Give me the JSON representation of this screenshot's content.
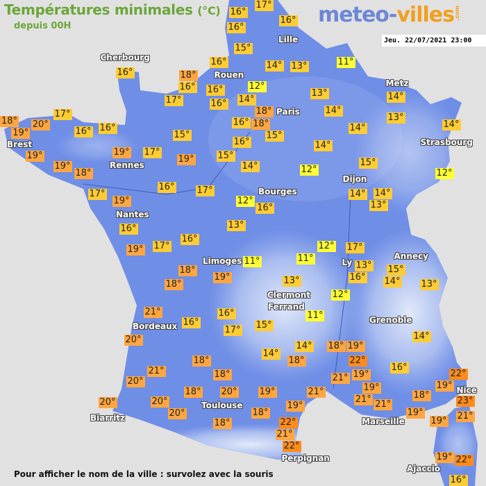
{
  "header": {
    "title": "Températures minimales",
    "unit": "(°C)",
    "subtitle": "depuis 00H",
    "datetime": "Jeu. 22/07/2021 23:00"
  },
  "logo": {
    "part1": "meteo-",
    "part2": "villes",
    "suffix": ".com"
  },
  "footer": "Pour afficher le nom de la ville : survolez avec la souris",
  "colors": {
    "land": "#6f8ee6",
    "sea": "#e2e1e1",
    "title": "#6aa63a",
    "temp_11_12": "#ffff33",
    "temp_13_17": "#ffcc33",
    "temp_18_21": "#ffa640",
    "temp_22_23": "#ff8c1a"
  },
  "cities": [
    "Cherbourg",
    "Lille",
    "Rouen",
    "Paris",
    "Metz",
    "Strasbourg",
    "Brest",
    "Rennes",
    "Nantes",
    "Bourges",
    "Dijon",
    "Limoges",
    "Ly",
    "Annecy",
    "Clermont",
    "Ferrand",
    "Grenoble",
    "Bordeaux",
    "Toulouse",
    "Biarritz",
    "Marseille",
    "Nice",
    "Perpignan",
    "Ajaccio"
  ],
  "temperatures": [
    "16°",
    "17°",
    "16°",
    "16°",
    "15°",
    "16°",
    "18°",
    "16°",
    "16°",
    "16°",
    "17°",
    "12°",
    "14°",
    "18°",
    "18°",
    "15°",
    "16°",
    "16°",
    "14°",
    "13°",
    "11°",
    "13°",
    "14°",
    "14°",
    "14°",
    "13°",
    "14°",
    "12°",
    "15°",
    "14°",
    "12°",
    "14°",
    "14°",
    "14°",
    "13°",
    "12°",
    "16°",
    "13°",
    "15°",
    "15°",
    "16°",
    "17°",
    "19°",
    "17°",
    "19°",
    "18°",
    "19°",
    "19°",
    "16°",
    "16°",
    "17°",
    "20°",
    "18°",
    "19°",
    "16°",
    "17°",
    "19°",
    "16°",
    "19°",
    "17°",
    "16°",
    "18°",
    "18°",
    "19°",
    "21°",
    "20°",
    "16°",
    "16°",
    "17°",
    "15°",
    "14°",
    "18°",
    "18°",
    "21°",
    "20°",
    "18°",
    "20°",
    "20°",
    "20°",
    "20°",
    "18°",
    "18°",
    "19°",
    "19°",
    "21°",
    "22°",
    "21°",
    "22°",
    "11°",
    "11°",
    "12°",
    "17°",
    "13°",
    "16°",
    "13°",
    "12°",
    "11°",
    "14°",
    "18°",
    "18°",
    "19°",
    "22°",
    "19°",
    "21°",
    "19°",
    "21°",
    "21°",
    "19°",
    "18°",
    "16°",
    "14°",
    "15°",
    "14°",
    "13°",
    "22°",
    "19°",
    "23°",
    "21°",
    "19°",
    "19°",
    "22°",
    "16°"
  ]
}
